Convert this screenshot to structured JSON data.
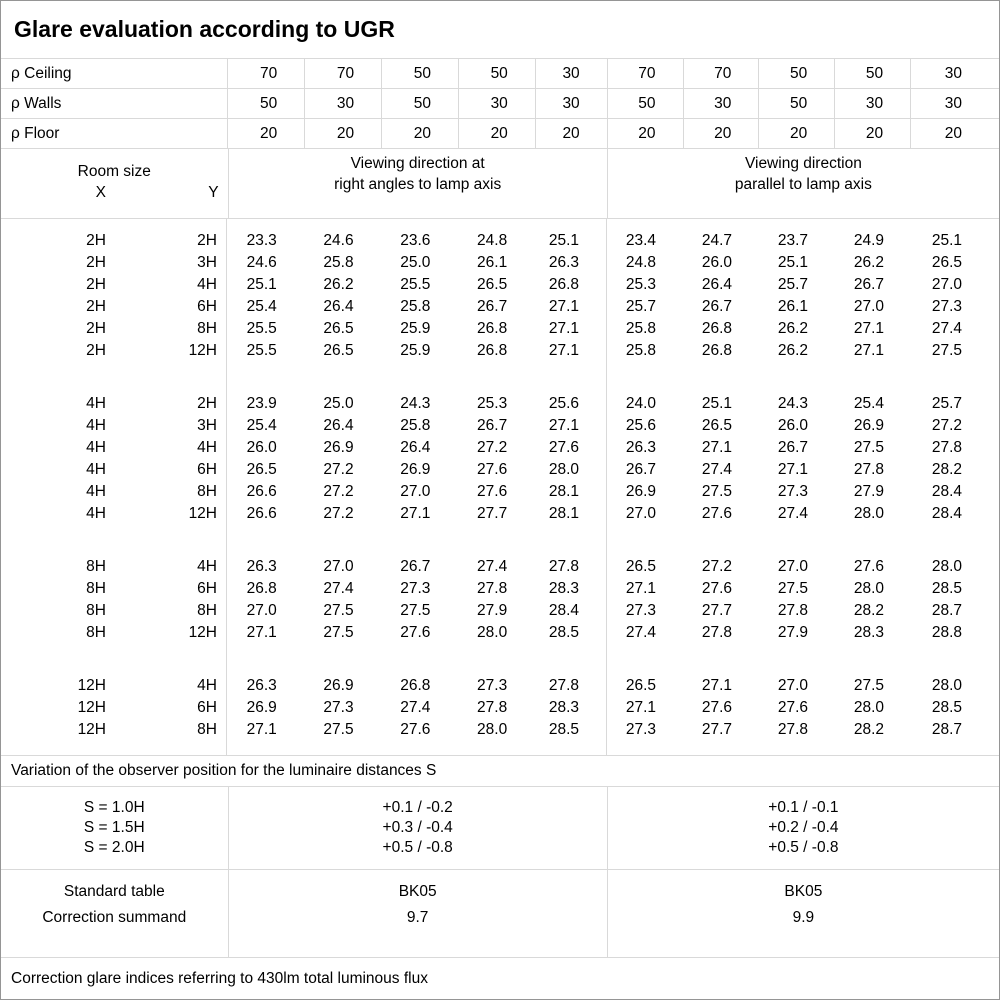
{
  "title": "Glare evaluation according to UGR",
  "reflectances": {
    "rows": [
      {
        "label": "ρ Ceiling",
        "values": [
          "70",
          "70",
          "50",
          "50",
          "30",
          "70",
          "70",
          "50",
          "50",
          "30"
        ]
      },
      {
        "label": "ρ Walls",
        "values": [
          "50",
          "30",
          "50",
          "30",
          "30",
          "50",
          "30",
          "50",
          "30",
          "30"
        ]
      },
      {
        "label": "ρ Floor",
        "values": [
          "20",
          "20",
          "20",
          "20",
          "20",
          "20",
          "20",
          "20",
          "20",
          "20"
        ]
      }
    ]
  },
  "header": {
    "room_size_label": "Room size",
    "x_label": "X",
    "y_label": "Y",
    "left_direction": [
      "Viewing direction at",
      "right angles to lamp axis"
    ],
    "right_direction": [
      "Viewing direction",
      "parallel to lamp axis"
    ]
  },
  "ugr_groups": [
    {
      "rows": [
        {
          "x": "2H",
          "y": "2H",
          "left": [
            "23.3",
            "24.6",
            "23.6",
            "24.8",
            "25.1"
          ],
          "right": [
            "23.4",
            "24.7",
            "23.7",
            "24.9",
            "25.1"
          ]
        },
        {
          "x": "2H",
          "y": "3H",
          "left": [
            "24.6",
            "25.8",
            "25.0",
            "26.1",
            "26.3"
          ],
          "right": [
            "24.8",
            "26.0",
            "25.1",
            "26.2",
            "26.5"
          ]
        },
        {
          "x": "2H",
          "y": "4H",
          "left": [
            "25.1",
            "26.2",
            "25.5",
            "26.5",
            "26.8"
          ],
          "right": [
            "25.3",
            "26.4",
            "25.7",
            "26.7",
            "27.0"
          ]
        },
        {
          "x": "2H",
          "y": "6H",
          "left": [
            "25.4",
            "26.4",
            "25.8",
            "26.7",
            "27.1"
          ],
          "right": [
            "25.7",
            "26.7",
            "26.1",
            "27.0",
            "27.3"
          ]
        },
        {
          "x": "2H",
          "y": "8H",
          "left": [
            "25.5",
            "26.5",
            "25.9",
            "26.8",
            "27.1"
          ],
          "right": [
            "25.8",
            "26.8",
            "26.2",
            "27.1",
            "27.4"
          ]
        },
        {
          "x": "2H",
          "y": "12H",
          "left": [
            "25.5",
            "26.5",
            "25.9",
            "26.8",
            "27.1"
          ],
          "right": [
            "25.8",
            "26.8",
            "26.2",
            "27.1",
            "27.5"
          ]
        }
      ]
    },
    {
      "rows": [
        {
          "x": "4H",
          "y": "2H",
          "left": [
            "23.9",
            "25.0",
            "24.3",
            "25.3",
            "25.6"
          ],
          "right": [
            "24.0",
            "25.1",
            "24.3",
            "25.4",
            "25.7"
          ]
        },
        {
          "x": "4H",
          "y": "3H",
          "left": [
            "25.4",
            "26.4",
            "25.8",
            "26.7",
            "27.1"
          ],
          "right": [
            "25.6",
            "26.5",
            "26.0",
            "26.9",
            "27.2"
          ]
        },
        {
          "x": "4H",
          "y": "4H",
          "left": [
            "26.0",
            "26.9",
            "26.4",
            "27.2",
            "27.6"
          ],
          "right": [
            "26.3",
            "27.1",
            "26.7",
            "27.5",
            "27.8"
          ]
        },
        {
          "x": "4H",
          "y": "6H",
          "left": [
            "26.5",
            "27.2",
            "26.9",
            "27.6",
            "28.0"
          ],
          "right": [
            "26.7",
            "27.4",
            "27.1",
            "27.8",
            "28.2"
          ]
        },
        {
          "x": "4H",
          "y": "8H",
          "left": [
            "26.6",
            "27.2",
            "27.0",
            "27.6",
            "28.1"
          ],
          "right": [
            "26.9",
            "27.5",
            "27.3",
            "27.9",
            "28.4"
          ]
        },
        {
          "x": "4H",
          "y": "12H",
          "left": [
            "26.6",
            "27.2",
            "27.1",
            "27.7",
            "28.1"
          ],
          "right": [
            "27.0",
            "27.6",
            "27.4",
            "28.0",
            "28.4"
          ]
        }
      ]
    },
    {
      "rows": [
        {
          "x": "8H",
          "y": "4H",
          "left": [
            "26.3",
            "27.0",
            "26.7",
            "27.4",
            "27.8"
          ],
          "right": [
            "26.5",
            "27.2",
            "27.0",
            "27.6",
            "28.0"
          ]
        },
        {
          "x": "8H",
          "y": "6H",
          "left": [
            "26.8",
            "27.4",
            "27.3",
            "27.8",
            "28.3"
          ],
          "right": [
            "27.1",
            "27.6",
            "27.5",
            "28.0",
            "28.5"
          ]
        },
        {
          "x": "8H",
          "y": "8H",
          "left": [
            "27.0",
            "27.5",
            "27.5",
            "27.9",
            "28.4"
          ],
          "right": [
            "27.3",
            "27.7",
            "27.8",
            "28.2",
            "28.7"
          ]
        },
        {
          "x": "8H",
          "y": "12H",
          "left": [
            "27.1",
            "27.5",
            "27.6",
            "28.0",
            "28.5"
          ],
          "right": [
            "27.4",
            "27.8",
            "27.9",
            "28.3",
            "28.8"
          ]
        }
      ]
    },
    {
      "rows": [
        {
          "x": "12H",
          "y": "4H",
          "left": [
            "26.3",
            "26.9",
            "26.8",
            "27.3",
            "27.8"
          ],
          "right": [
            "26.5",
            "27.1",
            "27.0",
            "27.5",
            "28.0"
          ]
        },
        {
          "x": "12H",
          "y": "6H",
          "left": [
            "26.9",
            "27.3",
            "27.4",
            "27.8",
            "28.3"
          ],
          "right": [
            "27.1",
            "27.6",
            "27.6",
            "28.0",
            "28.5"
          ]
        },
        {
          "x": "12H",
          "y": "8H",
          "left": [
            "27.1",
            "27.5",
            "27.6",
            "28.0",
            "28.5"
          ],
          "right": [
            "27.3",
            "27.7",
            "27.8",
            "28.2",
            "28.7"
          ]
        }
      ]
    }
  ],
  "variation_note": "Variation of the observer position for the luminaire distances S",
  "spacing_section": {
    "labels": [
      "S = 1.0H",
      "S = 1.5H",
      "S = 2.0H"
    ],
    "left_values": [
      "+0.1 / -0.2",
      "+0.3 / -0.4",
      "+0.5 / -0.8"
    ],
    "right_values": [
      "+0.1 / -0.1",
      "+0.2 / -0.4",
      "+0.5 / -0.8"
    ]
  },
  "summary_section": {
    "labels": [
      "Standard table",
      "Correction summand"
    ],
    "left_values": [
      "BK05",
      "9.7"
    ],
    "right_values": [
      "BK05",
      "9.9"
    ]
  },
  "footer_note": "Correction glare indices referring to 430lm total luminous flux",
  "colors": {
    "grid_line": "#d9d9d9",
    "outer_border": "#959595",
    "text": "#000000",
    "background": "#ffffff"
  }
}
